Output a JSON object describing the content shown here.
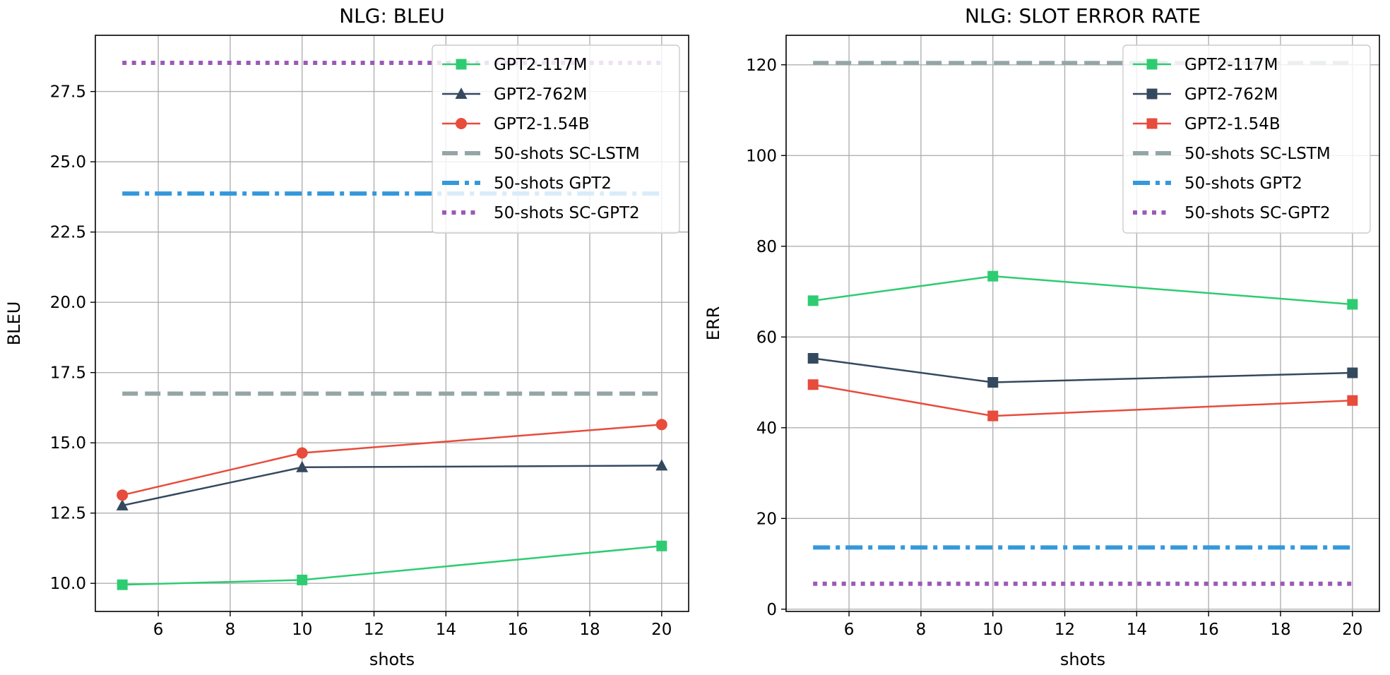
{
  "chart_data": [
    {
      "type": "line",
      "title": "NLG: BLEU",
      "xlabel": "shots",
      "ylabel": "BLEU",
      "xlim": [
        4.25,
        20.75
      ],
      "ylim": [
        9.0,
        29.5
      ],
      "xticks": [
        6,
        8,
        10,
        12,
        14,
        16,
        18,
        20
      ],
      "xtick_labels": [
        "6",
        "8",
        "10",
        "12",
        "14",
        "16",
        "18",
        "20"
      ],
      "yticks": [
        10.0,
        12.5,
        15.0,
        17.5,
        20.0,
        22.5,
        25.0,
        27.5
      ],
      "ytick_labels": [
        "10.0",
        "12.5",
        "15.0",
        "17.5",
        "20.0",
        "22.5",
        "25.0",
        "27.5"
      ],
      "grid": true,
      "legend": "top-right",
      "x": [
        5,
        10,
        20
      ],
      "series": [
        {
          "name": "GPT2-117M",
          "values": [
            9.95,
            10.12,
            11.33
          ],
          "color": "#2ecc71",
          "marker": "square",
          "style": "solid"
        },
        {
          "name": "GPT2-762M",
          "values": [
            12.77,
            14.13,
            14.19
          ],
          "color": "#34495e",
          "marker": "triangle",
          "style": "solid"
        },
        {
          "name": "GPT2-1.54B",
          "values": [
            13.14,
            14.64,
            15.65
          ],
          "color": "#e74c3c",
          "marker": "circle",
          "style": "solid"
        }
      ],
      "reference_lines": [
        {
          "name": "50-shots SC-LSTM",
          "value": 16.75,
          "color": "#95a5a6",
          "style": "dashed"
        },
        {
          "name": "50-shots GPT2",
          "value": 23.87,
          "color": "#3498db",
          "style": "dashdot"
        },
        {
          "name": "50-shots SC-GPT2",
          "value": 28.52,
          "color": "#9b59b6",
          "style": "dotted"
        }
      ]
    },
    {
      "type": "line",
      "title": "NLG: SLOT ERROR RATE",
      "xlabel": "shots",
      "ylabel": "ERR",
      "xlim": [
        4.25,
        20.75
      ],
      "ylim": [
        -0.5,
        126.5
      ],
      "xticks": [
        6,
        8,
        10,
        12,
        14,
        16,
        18,
        20
      ],
      "xtick_labels": [
        "6",
        "8",
        "10",
        "12",
        "14",
        "16",
        "18",
        "20"
      ],
      "yticks": [
        0,
        20,
        40,
        60,
        80,
        100,
        120
      ],
      "ytick_labels": [
        "0",
        "20",
        "40",
        "60",
        "80",
        "100",
        "120"
      ],
      "grid": true,
      "legend": "top-right",
      "x": [
        5,
        10,
        20
      ],
      "series": [
        {
          "name": "GPT2-117M",
          "values": [
            68.0,
            73.4,
            67.2
          ],
          "color": "#2ecc71",
          "marker": "square",
          "style": "solid"
        },
        {
          "name": "GPT2-762M",
          "values": [
            55.3,
            50.0,
            52.1
          ],
          "color": "#34495e",
          "marker": "square",
          "style": "solid"
        },
        {
          "name": "GPT2-1.54B",
          "values": [
            49.5,
            42.6,
            46.0
          ],
          "color": "#e74c3c",
          "marker": "square",
          "style": "solid"
        }
      ],
      "reference_lines": [
        {
          "name": "50-shots SC-LSTM",
          "value": 120.4,
          "color": "#95a5a6",
          "style": "dashed"
        },
        {
          "name": "50-shots GPT2",
          "value": 13.6,
          "color": "#3498db",
          "style": "dashdot"
        },
        {
          "name": "50-shots SC-GPT2",
          "value": 5.6,
          "color": "#9b59b6",
          "style": "dotted"
        }
      ]
    }
  ]
}
